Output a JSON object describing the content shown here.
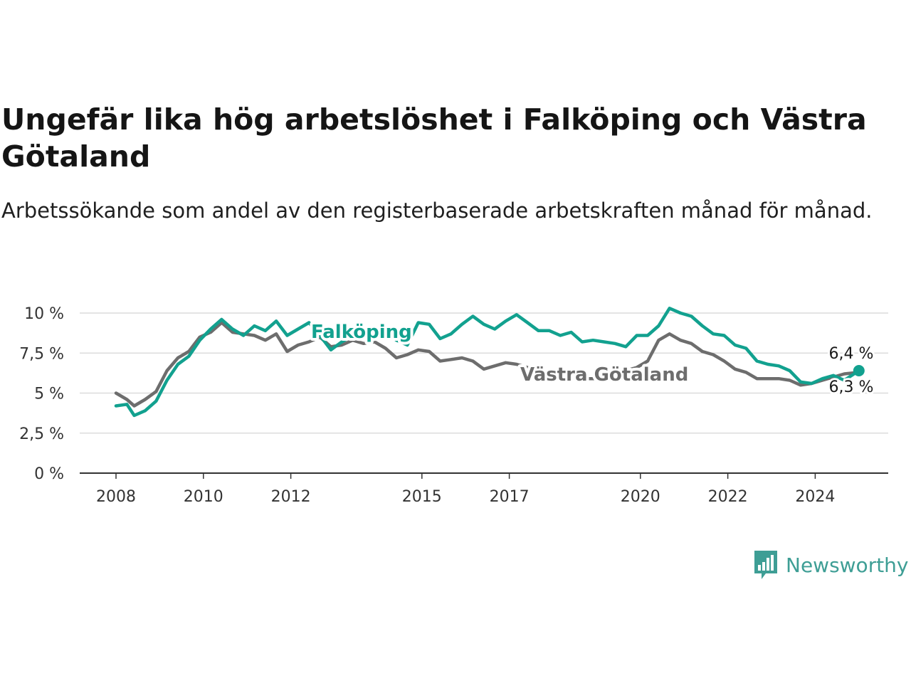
{
  "title": "Ungefär lika hög arbetslöshet i Falköping och Västra Götaland",
  "subtitle": "Arbetssökande som andel av den registerbaserade arbetskraften månad för månad.",
  "logo": {
    "text": "Newsworthy",
    "icon": "newsworthy-logo-icon",
    "color": "#3e9e95"
  },
  "chart_data": {
    "type": "line",
    "title": "Ungefär lika hög arbetslöshet i Falköping och Västra Götaland",
    "subtitle": "Arbetssökande som andel av den registerbaserade arbetskraften månad för månad.",
    "xlabel": "",
    "ylabel": "",
    "x_ticks": [
      "2008",
      "2010",
      "2012",
      "2015",
      "2017",
      "2020",
      "2022",
      "2024"
    ],
    "y_ticks": [
      "0 %",
      "2,5 %",
      "5 %",
      "7,5 %",
      "10 %"
    ],
    "ylim": [
      0,
      10
    ],
    "grid": "horizontal",
    "series": [
      {
        "name": "Falköping",
        "color": "#12a18f",
        "end_label": "6,4 %",
        "points": [
          [
            "2008-01",
            4.2
          ],
          [
            "2008-04",
            4.3
          ],
          [
            "2008-06",
            3.6
          ],
          [
            "2008-09",
            3.9
          ],
          [
            "2008-12",
            4.5
          ],
          [
            "2009-03",
            5.8
          ],
          [
            "2009-06",
            6.8
          ],
          [
            "2009-09",
            7.3
          ],
          [
            "2009-12",
            8.3
          ],
          [
            "2010-03",
            9.0
          ],
          [
            "2010-06",
            9.6
          ],
          [
            "2010-09",
            9.0
          ],
          [
            "2010-12",
            8.6
          ],
          [
            "2011-03",
            9.2
          ],
          [
            "2011-06",
            8.9
          ],
          [
            "2011-09",
            9.5
          ],
          [
            "2011-12",
            8.6
          ],
          [
            "2012-03",
            9.0
          ],
          [
            "2012-06",
            9.4
          ],
          [
            "2012-09",
            8.6
          ],
          [
            "2012-12",
            7.7
          ],
          [
            "2013-03",
            8.2
          ],
          [
            "2013-06",
            8.6
          ],
          [
            "2013-09",
            8.8
          ],
          [
            "2013-12",
            8.5
          ],
          [
            "2014-03",
            8.8
          ],
          [
            "2014-06",
            8.3
          ],
          [
            "2014-09",
            8.0
          ],
          [
            "2014-12",
            9.4
          ],
          [
            "2015-03",
            9.3
          ],
          [
            "2015-06",
            8.4
          ],
          [
            "2015-09",
            8.7
          ],
          [
            "2015-12",
            9.3
          ],
          [
            "2016-03",
            9.8
          ],
          [
            "2016-06",
            9.3
          ],
          [
            "2016-09",
            9.0
          ],
          [
            "2016-12",
            9.5
          ],
          [
            "2017-03",
            9.9
          ],
          [
            "2017-06",
            9.4
          ],
          [
            "2017-09",
            8.9
          ],
          [
            "2017-12",
            8.9
          ],
          [
            "2018-03",
            8.6
          ],
          [
            "2018-06",
            8.8
          ],
          [
            "2018-09",
            8.2
          ],
          [
            "2018-12",
            8.3
          ],
          [
            "2019-03",
            8.2
          ],
          [
            "2019-06",
            8.1
          ],
          [
            "2019-09",
            7.9
          ],
          [
            "2019-12",
            8.6
          ],
          [
            "2020-03",
            8.6
          ],
          [
            "2020-06",
            9.2
          ],
          [
            "2020-09",
            10.3
          ],
          [
            "2020-12",
            10.0
          ],
          [
            "2021-03",
            9.8
          ],
          [
            "2021-06",
            9.2
          ],
          [
            "2021-09",
            8.7
          ],
          [
            "2021-12",
            8.6
          ],
          [
            "2022-03",
            8.0
          ],
          [
            "2022-06",
            7.8
          ],
          [
            "2022-09",
            7.0
          ],
          [
            "2022-12",
            6.8
          ],
          [
            "2023-03",
            6.7
          ],
          [
            "2023-06",
            6.4
          ],
          [
            "2023-09",
            5.7
          ],
          [
            "2023-12",
            5.6
          ],
          [
            "2024-03",
            5.9
          ],
          [
            "2024-06",
            6.1
          ],
          [
            "2024-09",
            5.8
          ],
          [
            "2025-01",
            6.4
          ]
        ]
      },
      {
        "name": "Västra Götaland",
        "color": "#6d6d6d",
        "end_label": "6,3 %",
        "points": [
          [
            "2008-01",
            5.0
          ],
          [
            "2008-04",
            4.6
          ],
          [
            "2008-06",
            4.2
          ],
          [
            "2008-09",
            4.6
          ],
          [
            "2008-12",
            5.1
          ],
          [
            "2009-03",
            6.4
          ],
          [
            "2009-06",
            7.2
          ],
          [
            "2009-09",
            7.6
          ],
          [
            "2009-12",
            8.5
          ],
          [
            "2010-03",
            8.8
          ],
          [
            "2010-06",
            9.4
          ],
          [
            "2010-09",
            8.8
          ],
          [
            "2010-12",
            8.7
          ],
          [
            "2011-03",
            8.6
          ],
          [
            "2011-06",
            8.3
          ],
          [
            "2011-09",
            8.7
          ],
          [
            "2011-12",
            7.6
          ],
          [
            "2012-03",
            8.0
          ],
          [
            "2012-06",
            8.2
          ],
          [
            "2012-09",
            8.5
          ],
          [
            "2012-12",
            7.9
          ],
          [
            "2013-03",
            8.0
          ],
          [
            "2013-06",
            8.3
          ],
          [
            "2013-09",
            8.1
          ],
          [
            "2013-12",
            8.2
          ],
          [
            "2014-03",
            7.8
          ],
          [
            "2014-06",
            7.2
          ],
          [
            "2014-09",
            7.4
          ],
          [
            "2014-12",
            7.7
          ],
          [
            "2015-03",
            7.6
          ],
          [
            "2015-06",
            7.0
          ],
          [
            "2015-09",
            7.1
          ],
          [
            "2015-12",
            7.2
          ],
          [
            "2016-03",
            7.0
          ],
          [
            "2016-06",
            6.5
          ],
          [
            "2016-09",
            6.7
          ],
          [
            "2016-12",
            6.9
          ],
          [
            "2017-03",
            6.8
          ],
          [
            "2017-06",
            6.6
          ],
          [
            "2017-09",
            6.4
          ],
          [
            "2017-12",
            6.3
          ],
          [
            "2018-03",
            6.1
          ],
          [
            "2018-06",
            6.0
          ],
          [
            "2018-09",
            5.9
          ],
          [
            "2018-12",
            5.9
          ],
          [
            "2019-03",
            5.9
          ],
          [
            "2019-06",
            6.1
          ],
          [
            "2019-09",
            6.4
          ],
          [
            "2019-12",
            6.6
          ],
          [
            "2020-03",
            7.0
          ],
          [
            "2020-06",
            8.3
          ],
          [
            "2020-09",
            8.7
          ],
          [
            "2020-12",
            8.3
          ],
          [
            "2021-03",
            8.1
          ],
          [
            "2021-06",
            7.6
          ],
          [
            "2021-09",
            7.4
          ],
          [
            "2021-12",
            7.0
          ],
          [
            "2022-03",
            6.5
          ],
          [
            "2022-06",
            6.3
          ],
          [
            "2022-09",
            5.9
          ],
          [
            "2022-12",
            5.9
          ],
          [
            "2023-03",
            5.9
          ],
          [
            "2023-06",
            5.8
          ],
          [
            "2023-09",
            5.5
          ],
          [
            "2023-12",
            5.6
          ],
          [
            "2024-03",
            5.8
          ],
          [
            "2024-06",
            6.0
          ],
          [
            "2024-09",
            6.2
          ],
          [
            "2025-01",
            6.3
          ]
        ]
      }
    ]
  }
}
